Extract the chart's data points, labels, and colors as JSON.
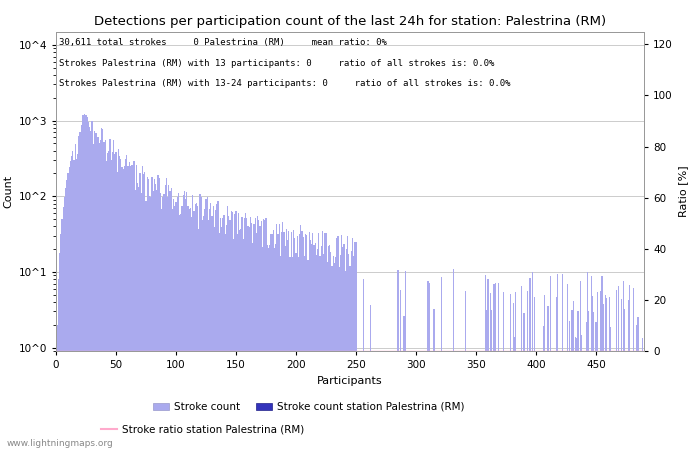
{
  "title": "Detections per participation count of the last 24h for station: Palestrina (RM)",
  "xlabel": "Participants",
  "ylabel_left": "Count",
  "ylabel_right": "Ratio [%]",
  "annotation_lines": [
    "30,611 total strokes     0 Palestrina (RM)     mean ratio: 0%",
    "Strokes Palestrina (RM) with 13 participants: 0     ratio of all strokes is: 0.0%",
    "Strokes Palestrina (RM) with 13-24 participants: 0     ratio of all strokes is: 0.0%"
  ],
  "bar_color_light": "#aaaaee",
  "bar_color_dark": "#3333bb",
  "ratio_line_color": "#ffaacc",
  "background_color": "#ffffff",
  "grid_color": "#cccccc",
  "watermark": "www.lightningmaps.org",
  "xlim": [
    0,
    490
  ],
  "ylim_ratio": [
    0,
    125
  ],
  "ratio_ticks": [
    0,
    20,
    40,
    60,
    80,
    100,
    120
  ],
  "yticks_log": [
    1,
    10,
    100,
    1000,
    10000
  ],
  "ytick_labels_log": [
    "10^0",
    "10^1",
    "10^2",
    "10^3",
    "10^4"
  ],
  "xticks": [
    0,
    50,
    100,
    150,
    200,
    250,
    300,
    350,
    400,
    450
  ]
}
